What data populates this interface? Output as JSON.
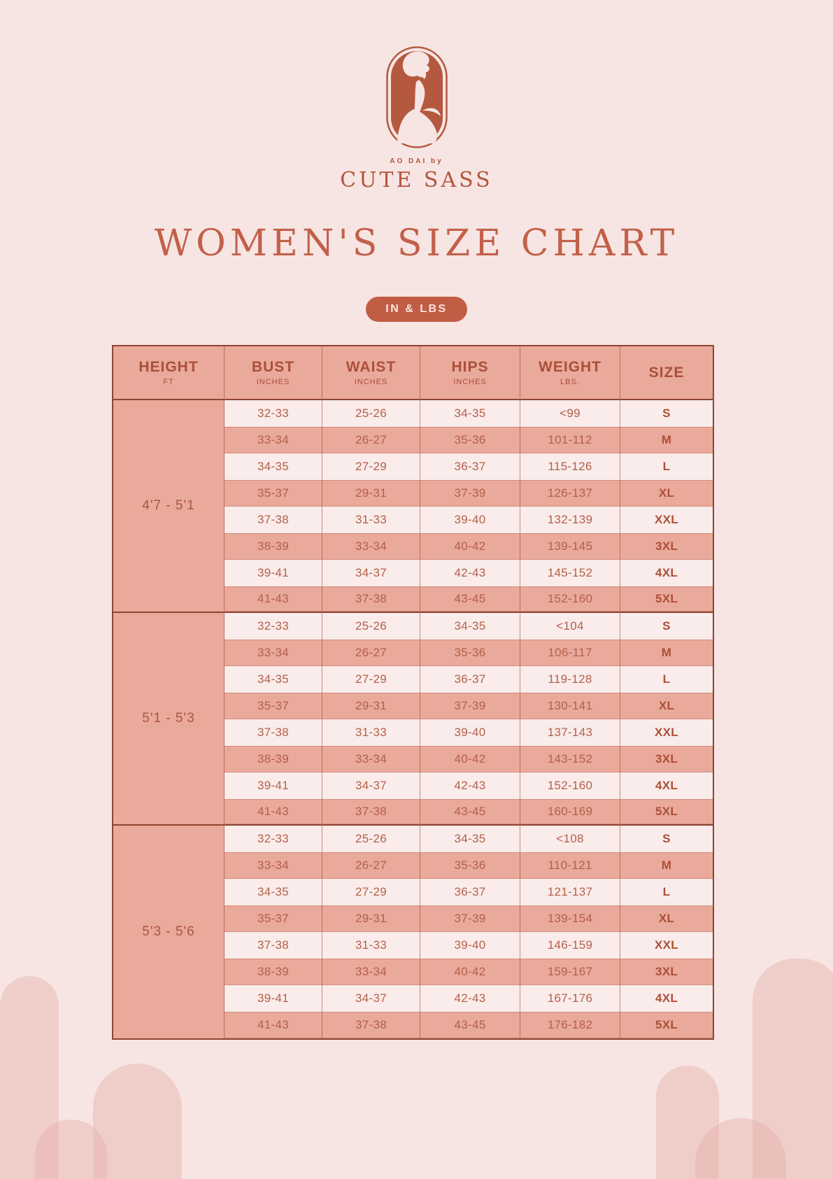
{
  "brand": {
    "tagline": "AO DAI by",
    "name": "CUTE SASS"
  },
  "title": "WOMEN'S SIZE CHART",
  "unit_badge": "IN & LBS",
  "colors": {
    "page_bg": "#f7e5e3",
    "accent": "#b5543c",
    "title": "#c2604a",
    "salmon_fill": "#e9a99b",
    "light_row": "#f9ecea",
    "badge_bg": "#c05d44",
    "border_dark": "#8c452f"
  },
  "chart_data": {
    "type": "table",
    "title": "WOMEN'S SIZE CHART",
    "units": "IN & LBS",
    "columns": [
      {
        "label": "HEIGHT",
        "sub": "FT"
      },
      {
        "label": "BUST",
        "sub": "INCHES"
      },
      {
        "label": "WAIST",
        "sub": "INCHES"
      },
      {
        "label": "HIPS",
        "sub": "INCHES"
      },
      {
        "label": "WEIGHT",
        "sub": "LBS."
      },
      {
        "label": "SIZE",
        "sub": ""
      }
    ],
    "groups": [
      {
        "height": "4'7 - 5'1",
        "rows": [
          {
            "bust": "32-33",
            "waist": "25-26",
            "hips": "34-35",
            "weight": "<99",
            "size": "S"
          },
          {
            "bust": "33-34",
            "waist": "26-27",
            "hips": "35-36",
            "weight": "101-112",
            "size": "M"
          },
          {
            "bust": "34-35",
            "waist": "27-29",
            "hips": "36-37",
            "weight": "115-126",
            "size": "L"
          },
          {
            "bust": "35-37",
            "waist": "29-31",
            "hips": "37-39",
            "weight": "126-137",
            "size": "XL"
          },
          {
            "bust": "37-38",
            "waist": "31-33",
            "hips": "39-40",
            "weight": "132-139",
            "size": "XXL"
          },
          {
            "bust": "38-39",
            "waist": "33-34",
            "hips": "40-42",
            "weight": "139-145",
            "size": "3XL"
          },
          {
            "bust": "39-41",
            "waist": "34-37",
            "hips": "42-43",
            "weight": "145-152",
            "size": "4XL"
          },
          {
            "bust": "41-43",
            "waist": "37-38",
            "hips": "43-45",
            "weight": "152-160",
            "size": "5XL"
          }
        ]
      },
      {
        "height": "5'1 - 5'3",
        "rows": [
          {
            "bust": "32-33",
            "waist": "25-26",
            "hips": "34-35",
            "weight": "<104",
            "size": "S"
          },
          {
            "bust": "33-34",
            "waist": "26-27",
            "hips": "35-36",
            "weight": "106-117",
            "size": "M"
          },
          {
            "bust": "34-35",
            "waist": "27-29",
            "hips": "36-37",
            "weight": "119-128",
            "size": "L"
          },
          {
            "bust": "35-37",
            "waist": "29-31",
            "hips": "37-39",
            "weight": "130-141",
            "size": "XL"
          },
          {
            "bust": "37-38",
            "waist": "31-33",
            "hips": "39-40",
            "weight": "137-143",
            "size": "XXL"
          },
          {
            "bust": "38-39",
            "waist": "33-34",
            "hips": "40-42",
            "weight": "143-152",
            "size": "3XL"
          },
          {
            "bust": "39-41",
            "waist": "34-37",
            "hips": "42-43",
            "weight": "152-160",
            "size": "4XL"
          },
          {
            "bust": "41-43",
            "waist": "37-38",
            "hips": "43-45",
            "weight": "160-169",
            "size": "5XL"
          }
        ]
      },
      {
        "height": "5'3 - 5'6",
        "rows": [
          {
            "bust": "32-33",
            "waist": "25-26",
            "hips": "34-35",
            "weight": "<108",
            "size": "S"
          },
          {
            "bust": "33-34",
            "waist": "26-27",
            "hips": "35-36",
            "weight": "110-121",
            "size": "M"
          },
          {
            "bust": "34-35",
            "waist": "27-29",
            "hips": "36-37",
            "weight": "121-137",
            "size": "L"
          },
          {
            "bust": "35-37",
            "waist": "29-31",
            "hips": "37-39",
            "weight": "139-154",
            "size": "XL"
          },
          {
            "bust": "37-38",
            "waist": "31-33",
            "hips": "39-40",
            "weight": "146-159",
            "size": "XXL"
          },
          {
            "bust": "38-39",
            "waist": "33-34",
            "hips": "40-42",
            "weight": "159-167",
            "size": "3XL"
          },
          {
            "bust": "39-41",
            "waist": "34-37",
            "hips": "42-43",
            "weight": "167-176",
            "size": "4XL"
          },
          {
            "bust": "41-43",
            "waist": "37-38",
            "hips": "43-45",
            "weight": "176-182",
            "size": "5XL"
          }
        ]
      }
    ]
  }
}
